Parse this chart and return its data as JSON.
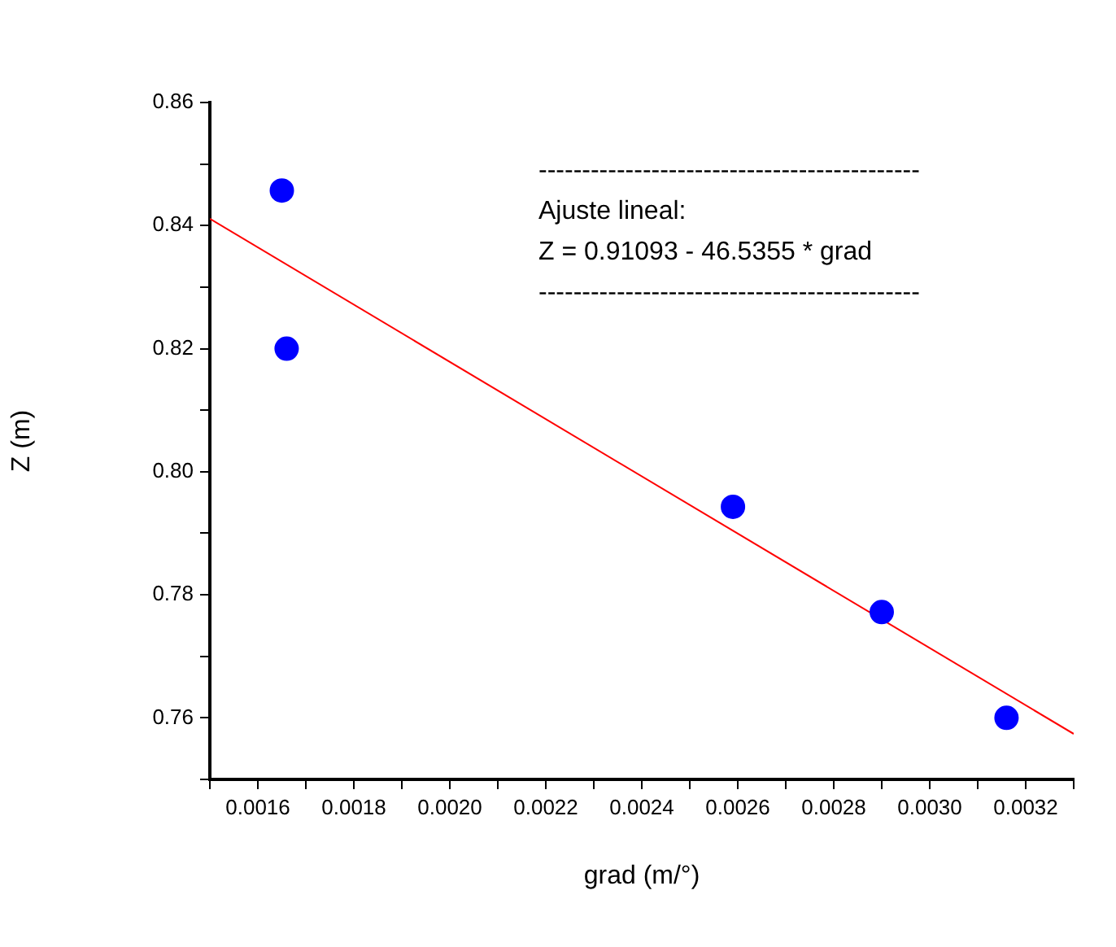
{
  "chart_data": {
    "type": "scatter",
    "xlabel": "grad (m/°)",
    "ylabel": "Z (m)",
    "annotations": [
      "--------------------------------------------",
      "Ajuste lineal:",
      "Z = 0.91093 - 46.5355 * grad",
      "--------------------------------------------"
    ],
    "series": [
      {
        "color": "#0000ff",
        "marker": "circle",
        "x": [
          0.00165,
          0.00166,
          0.00259,
          0.0029,
          0.00316
        ],
        "values": [
          0.8457,
          0.82,
          0.7943,
          0.7772,
          0.76
        ]
      },
      {
        "type": "line",
        "marker": "none",
        "color": "#ff0000",
        "x": [
          0.0015,
          0.0033
        ],
        "values": [
          0.8411,
          0.7574
        ]
      }
    ],
    "xlim": [
      0.0015,
      0.0033
    ],
    "xticks": [
      {
        "value": 0.0015,
        "label": null
      },
      0.0016,
      {
        "value": 0.0017,
        "label": null
      },
      0.0018,
      {
        "value": 0.0019,
        "label": null
      },
      {
        "value": 0.002,
        "label": "0.0020"
      },
      {
        "value": 0.0021,
        "label": null
      },
      0.0022,
      {
        "value": 0.0023,
        "label": null
      },
      0.0024,
      {
        "value": 0.0025,
        "label": null
      },
      0.0026,
      {
        "value": 0.0027,
        "label": null
      },
      0.0028,
      {
        "value": 0.0029,
        "label": null
      },
      {
        "value": 0.003,
        "label": "0.0030"
      },
      {
        "value": 0.0031,
        "label": null
      },
      0.0032,
      {
        "value": 0.0033,
        "label": null
      }
    ],
    "ylim": [
      0.75,
      0.86
    ],
    "yticks": [
      {
        "value": 0.75,
        "label": null
      },
      0.76,
      {
        "value": 0.77,
        "label": null
      },
      0.78,
      {
        "value": 0.79,
        "label": null
      },
      {
        "value": 0.8,
        "label": "0.80"
      },
      {
        "value": 0.81,
        "label": null
      },
      0.82,
      {
        "value": 0.83,
        "label": null
      },
      0.84,
      {
        "value": 0.85,
        "label": null
      },
      0.86
    ]
  }
}
